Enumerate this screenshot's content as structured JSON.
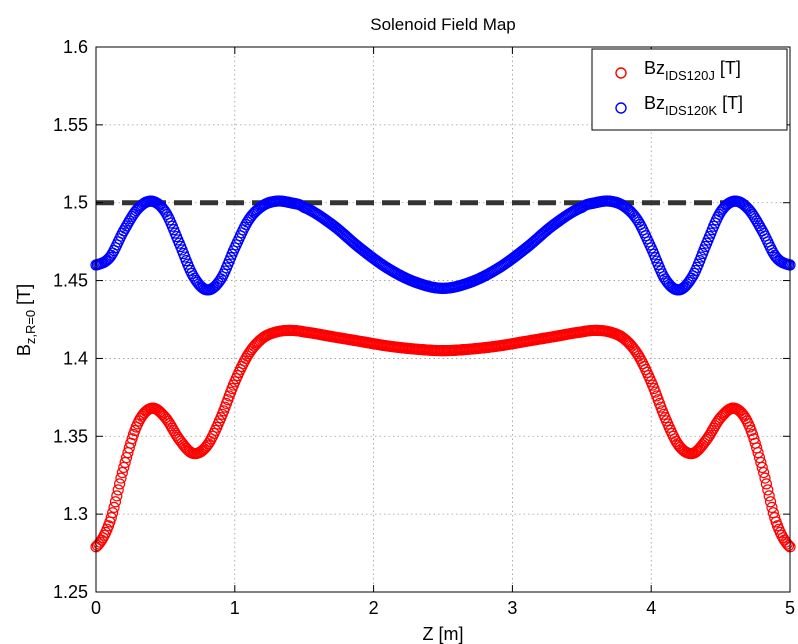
{
  "chart_data": {
    "type": "scatter",
    "title": "Solenoid Field Map",
    "xlabel": "Z [m]",
    "ylabel": {
      "main": "B",
      "sub": "z,R=0",
      "unit": " [T]"
    },
    "xlim": [
      0,
      5
    ],
    "ylim": [
      1.25,
      1.6
    ],
    "xticks": [
      0,
      1,
      2,
      3,
      4,
      5
    ],
    "yticks": [
      1.25,
      1.3,
      1.35,
      1.4,
      1.45,
      1.5,
      1.55,
      1.6
    ],
    "ytick_labels": [
      "1.25",
      "1.3",
      "1.35",
      "1.4",
      "1.45",
      "1.5",
      "1.55",
      "1.6"
    ],
    "grid": true,
    "legend_position": "top-right",
    "marker": "open-circle",
    "series": [
      {
        "name": "Bz_IDS120J [T]",
        "legend_main": "Bz",
        "legend_sub": "IDS120J",
        "legend_unit": " [T]",
        "color": "#ff0000",
        "x": [
          0,
          0.1,
          0.2,
          0.3,
          0.4,
          0.5,
          0.6,
          0.7,
          0.8,
          0.9,
          1.0,
          1.1,
          1.2,
          1.3,
          1.4,
          1.5,
          1.7,
          1.9,
          2.1,
          2.3,
          2.5,
          2.7,
          2.9,
          3.1,
          3.3,
          3.5,
          3.6,
          3.7,
          3.8,
          3.9,
          4.0,
          4.1,
          4.2,
          4.3,
          4.4,
          4.5,
          4.6,
          4.7,
          4.8,
          4.9,
          5.0
        ],
        "y": [
          1.279,
          1.295,
          1.33,
          1.358,
          1.368,
          1.362,
          1.348,
          1.339,
          1.344,
          1.362,
          1.385,
          1.403,
          1.413,
          1.417,
          1.418,
          1.417,
          1.414,
          1.411,
          1.408,
          1.406,
          1.405,
          1.406,
          1.408,
          1.411,
          1.414,
          1.417,
          1.418,
          1.417,
          1.413,
          1.403,
          1.385,
          1.362,
          1.344,
          1.339,
          1.348,
          1.362,
          1.368,
          1.358,
          1.33,
          1.295,
          1.279
        ]
      },
      {
        "name": "Bz_IDS120K [T]",
        "legend_main": "Bz",
        "legend_sub": "IDS120K",
        "legend_unit": " [T]",
        "color": "#0000ff",
        "x": [
          0,
          0.1,
          0.2,
          0.3,
          0.4,
          0.5,
          0.6,
          0.7,
          0.8,
          0.9,
          1.0,
          1.1,
          1.2,
          1.3,
          1.4,
          1.5,
          1.7,
          1.9,
          2.1,
          2.3,
          2.5,
          2.7,
          2.9,
          3.1,
          3.3,
          3.5,
          3.6,
          3.7,
          3.8,
          3.9,
          4.0,
          4.1,
          4.2,
          4.3,
          4.4,
          4.5,
          4.6,
          4.7,
          4.8,
          4.9,
          5.0
        ],
        "y": [
          1.46,
          1.465,
          1.482,
          1.496,
          1.501,
          1.494,
          1.474,
          1.453,
          1.444,
          1.451,
          1.471,
          1.489,
          1.498,
          1.501,
          1.5,
          1.497,
          1.486,
          1.471,
          1.458,
          1.449,
          1.445,
          1.449,
          1.458,
          1.471,
          1.486,
          1.497,
          1.5,
          1.501,
          1.498,
          1.489,
          1.471,
          1.451,
          1.444,
          1.453,
          1.474,
          1.494,
          1.501,
          1.496,
          1.482,
          1.465,
          1.46
        ]
      }
    ],
    "reference_line": {
      "y": 1.5,
      "x_range": [
        0,
        4.7
      ],
      "color": "#333333",
      "style": "dashed"
    }
  }
}
